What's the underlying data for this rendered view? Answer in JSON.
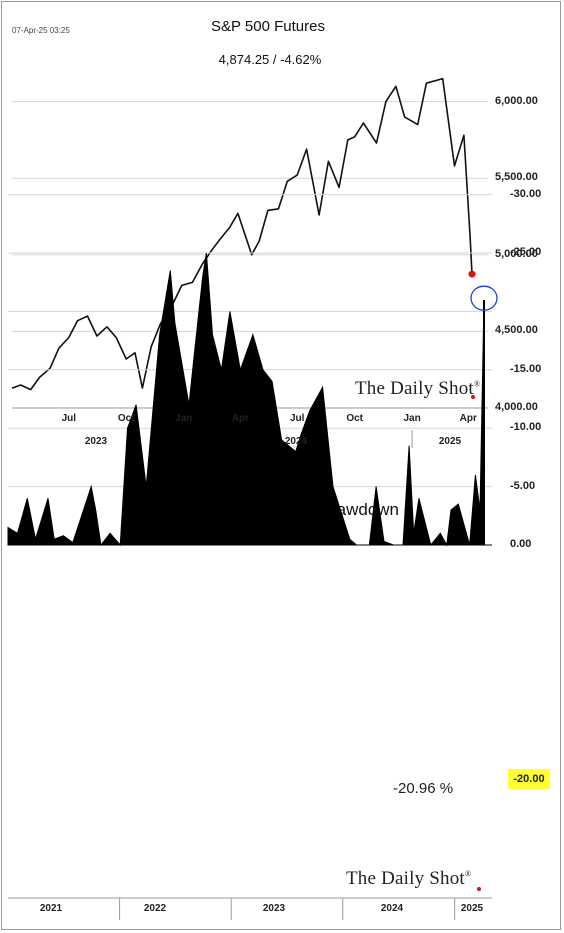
{
  "timestamp": "07-Apr-25 03:25",
  "logo_text": "The Daily Shot",
  "logo_mark": "®",
  "chart_data": [
    {
      "type": "line",
      "title": "S&P 500 Futures",
      "subtitle": "4,874.25  /  -4.62%",
      "last_value": 4874.25,
      "ylim": [
        4000,
        6400
      ],
      "yticks": [
        "4,000.00",
        "4,500.00",
        "5,000.00",
        "5,500.00",
        "6,000.00"
      ],
      "ytick_values": [
        4000,
        4500,
        5000,
        5500,
        6000
      ],
      "xticks": [
        "Jul",
        "Oct",
        "Jan",
        "Apr",
        "Jul",
        "Oct",
        "Jan",
        "Apr"
      ],
      "year_labels": [
        "2023",
        "2024",
        "2025"
      ],
      "series": [
        {
          "x": [
            "2023-04-01",
            "2023-04-15",
            "2023-05-01",
            "2023-05-15",
            "2023-06-01",
            "2023-06-15",
            "2023-07-01",
            "2023-07-15",
            "2023-07-31",
            "2023-08-15",
            "2023-08-31",
            "2023-09-15",
            "2023-10-01",
            "2023-10-15",
            "2023-10-27",
            "2023-11-10",
            "2023-11-25",
            "2023-12-10",
            "2023-12-29",
            "2024-01-15",
            "2024-01-31",
            "2024-02-15",
            "2024-03-01",
            "2024-03-15",
            "2024-03-28",
            "2024-04-19",
            "2024-05-01",
            "2024-05-15",
            "2024-06-01",
            "2024-06-15",
            "2024-07-01",
            "2024-07-16",
            "2024-08-05",
            "2024-08-20",
            "2024-09-06",
            "2024-09-20",
            "2024-10-01",
            "2024-10-15",
            "2024-11-05",
            "2024-11-20",
            "2024-12-06",
            "2024-12-20",
            "2025-01-10",
            "2025-01-24",
            "2025-02-19",
            "2025-03-10",
            "2025-03-25",
            "2025-04-04",
            "2025-04-07"
          ],
          "values": [
            4130,
            4150,
            4120,
            4200,
            4260,
            4390,
            4460,
            4570,
            4600,
            4470,
            4530,
            4460,
            4320,
            4360,
            4130,
            4400,
            4550,
            4640,
            4800,
            4820,
            4940,
            5030,
            5110,
            5180,
            5270,
            5000,
            5090,
            5290,
            5300,
            5480,
            5520,
            5690,
            5260,
            5610,
            5440,
            5750,
            5770,
            5860,
            5730,
            6000,
            6100,
            5900,
            5850,
            6120,
            6150,
            5580,
            5780,
            5120,
            4874.25
          ]
        }
      ]
    },
    {
      "type": "area",
      "title": "S&P 500 Futures % Drawdown",
      "annotation": "-20.96 %",
      "last_value": -20.96,
      "highlight_tick": "-20.00",
      "ylim": [
        -30,
        0
      ],
      "yticks": [
        "0.00",
        "-5.00",
        "-10.00",
        "-15.00",
        "-20.00",
        "-25.00",
        "-30.00"
      ],
      "ytick_values": [
        0,
        -5,
        -10,
        -15,
        -20,
        -25,
        -30
      ],
      "year_labels": [
        "2021",
        "2022",
        "2023",
        "2024",
        "2025"
      ],
      "series": [
        {
          "x": [
            "2021-01-01",
            "2021-02-01",
            "2021-03-05",
            "2021-04-01",
            "2021-05-12",
            "2021-06-01",
            "2021-07-01",
            "2021-08-01",
            "2021-09-30",
            "2021-10-15",
            "2021-11-01",
            "2021-12-01",
            "2022-01-03",
            "2022-01-27",
            "2022-02-24",
            "2022-03-29",
            "2022-05-12",
            "2022-06-16",
            "2022-07-01",
            "2022-08-16",
            "2022-09-01",
            "2022-09-30",
            "2022-10-12",
            "2022-11-01",
            "2022-11-30",
            "2022-12-28",
            "2023-01-31",
            "2023-03-13",
            "2023-04-15",
            "2023-05-15",
            "2023-06-15",
            "2023-07-31",
            "2023-08-18",
            "2023-09-15",
            "2023-10-27",
            "2023-11-30",
            "2024-01-24",
            "2024-02-15",
            "2024-03-28",
            "2024-04-19",
            "2024-05-15",
            "2024-06-15",
            "2024-07-16",
            "2024-08-05",
            "2024-08-20",
            "2024-09-06",
            "2024-10-15",
            "2024-11-15",
            "2024-12-06",
            "2024-12-20",
            "2025-01-13",
            "2025-02-19",
            "2025-03-10",
            "2025-03-25",
            "2025-04-04",
            "2025-04-07"
          ],
          "values": [
            -1.5,
            -1.0,
            -4.0,
            -0.5,
            -4.0,
            -0.5,
            -0.8,
            -0.2,
            -5.0,
            -3.0,
            0,
            -1.0,
            0,
            -10.0,
            -12.0,
            -5.0,
            -18.0,
            -23.5,
            -19.0,
            -12.0,
            -16.0,
            -23.0,
            -25.0,
            -18.0,
            -15.0,
            -20.0,
            -15.0,
            -18.0,
            -15.0,
            -14.0,
            -9.0,
            -8.0,
            -9.5,
            -11.5,
            -13.5,
            -5.0,
            -0.5,
            0,
            0,
            -5.0,
            -0.3,
            0,
            0,
            -8.5,
            -1.0,
            -4.0,
            0,
            -1.0,
            0,
            -3.0,
            -3.5,
            0,
            -6.0,
            -3.0,
            -17.0,
            -20.96
          ]
        }
      ]
    }
  ]
}
